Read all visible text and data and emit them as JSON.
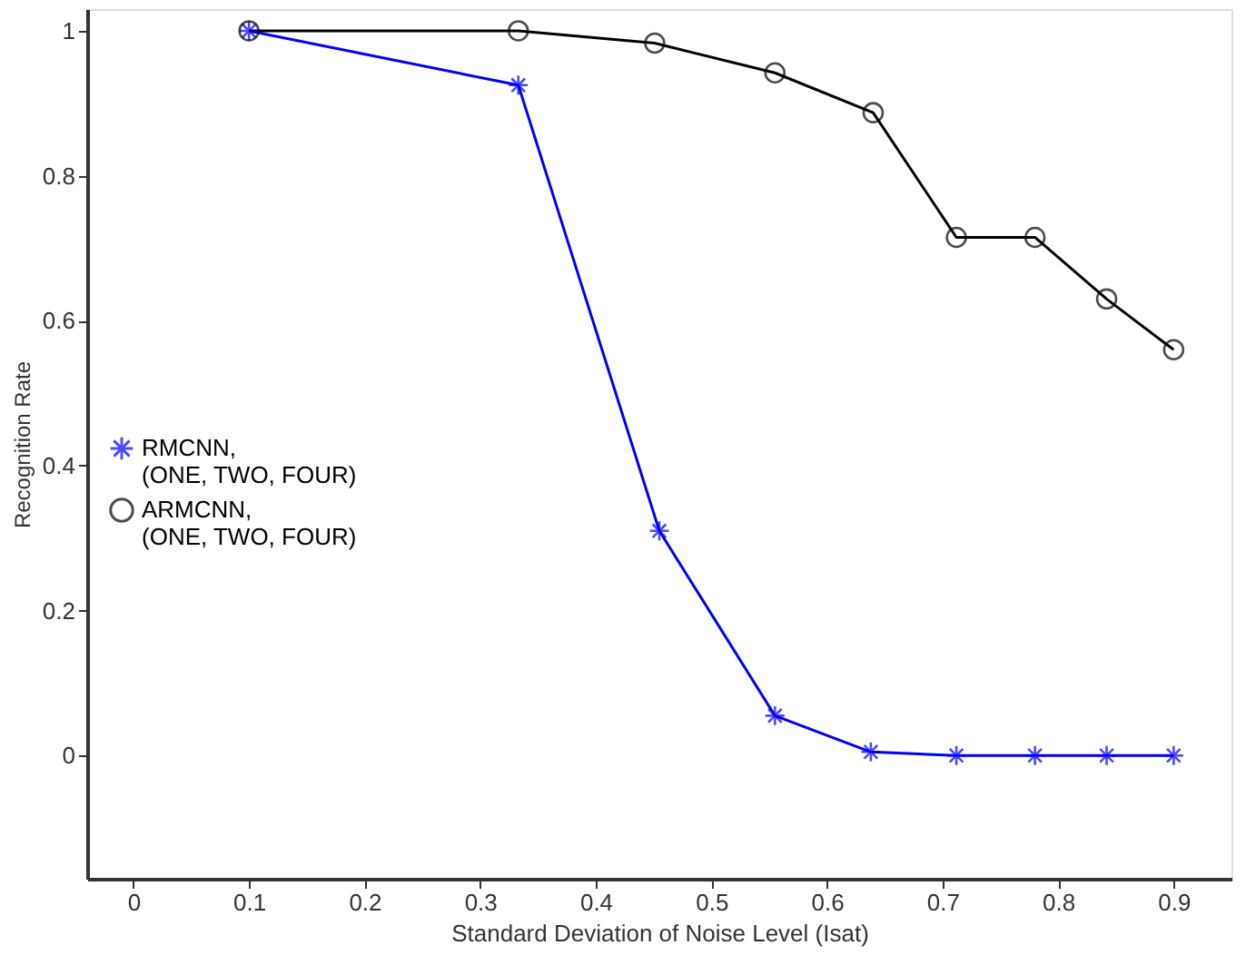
{
  "chart_data": {
    "type": "line",
    "xlabel": "Standard Deviation of Noise Level (Isat)",
    "ylabel": "Recognition Rate",
    "xlim": [
      -0.04,
      0.95
    ],
    "xticks": [
      0,
      0.1,
      0.2,
      0.3,
      0.4,
      0.5,
      0.6,
      0.7,
      0.8,
      0.9
    ],
    "ylim": [
      -0.17,
      1.03
    ],
    "yticks": [
      0,
      0.2,
      0.4,
      0.6,
      0.8,
      1
    ],
    "grid": false,
    "legend": "left",
    "line_style": "solid",
    "series": [
      {
        "name": "RMCNN,\n(ONE, TWO, FOUR)",
        "color": "#0000ff",
        "marker": "cross",
        "x": [
          0.1,
          0.333,
          0.455,
          0.555,
          0.638,
          0.712,
          0.78,
          0.842,
          0.9
        ],
        "values": [
          1,
          0.925,
          0.31,
          0.055,
          0.005,
          0,
          0,
          0,
          0
        ]
      },
      {
        "name": "ARMCNN,\n(ONE, TWO, FOUR)",
        "color": "#000000",
        "marker": "circle",
        "x": [
          0.1,
          0.333,
          0.451,
          0.555,
          0.64,
          0.712,
          0.78,
          0.842,
          0.9
        ],
        "values": [
          1,
          1,
          0.983,
          0.942,
          0.887,
          0.715,
          0.715,
          0.63,
          0.56
        ]
      }
    ]
  }
}
